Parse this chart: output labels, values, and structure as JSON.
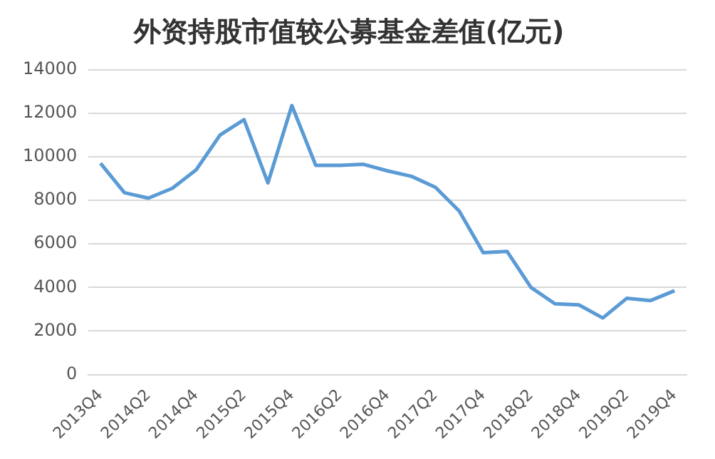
{
  "chart_data": {
    "type": "line",
    "title": "外资持股市值较公募基金差值(亿元)",
    "categories": [
      "2013Q4",
      null,
      "2014Q2",
      null,
      "2014Q4",
      null,
      "2015Q2",
      null,
      "2015Q4",
      null,
      "2016Q2",
      null,
      "2016Q4",
      null,
      "2017Q2",
      null,
      "2017Q4",
      null,
      "2018Q2",
      null,
      "2018Q4",
      null,
      "2019Q2",
      null,
      "2019Q4"
    ],
    "series": [
      {
        "color": "#5b9bd5",
        "values": [
          9700,
          8350,
          8100,
          8550,
          9400,
          11000,
          11700,
          8800,
          12350,
          9600,
          9600,
          9650,
          9350,
          9100,
          8600,
          7500,
          5600,
          5650,
          4000,
          3250,
          3200,
          2600,
          3500,
          3400,
          3850
        ]
      }
    ],
    "ylim": [
      0,
      14000
    ],
    "yticks": [
      0,
      2000,
      4000,
      6000,
      8000,
      10000,
      12000,
      14000
    ],
    "grid": "y",
    "legend": false,
    "marker": "none",
    "line_style": "solid"
  }
}
